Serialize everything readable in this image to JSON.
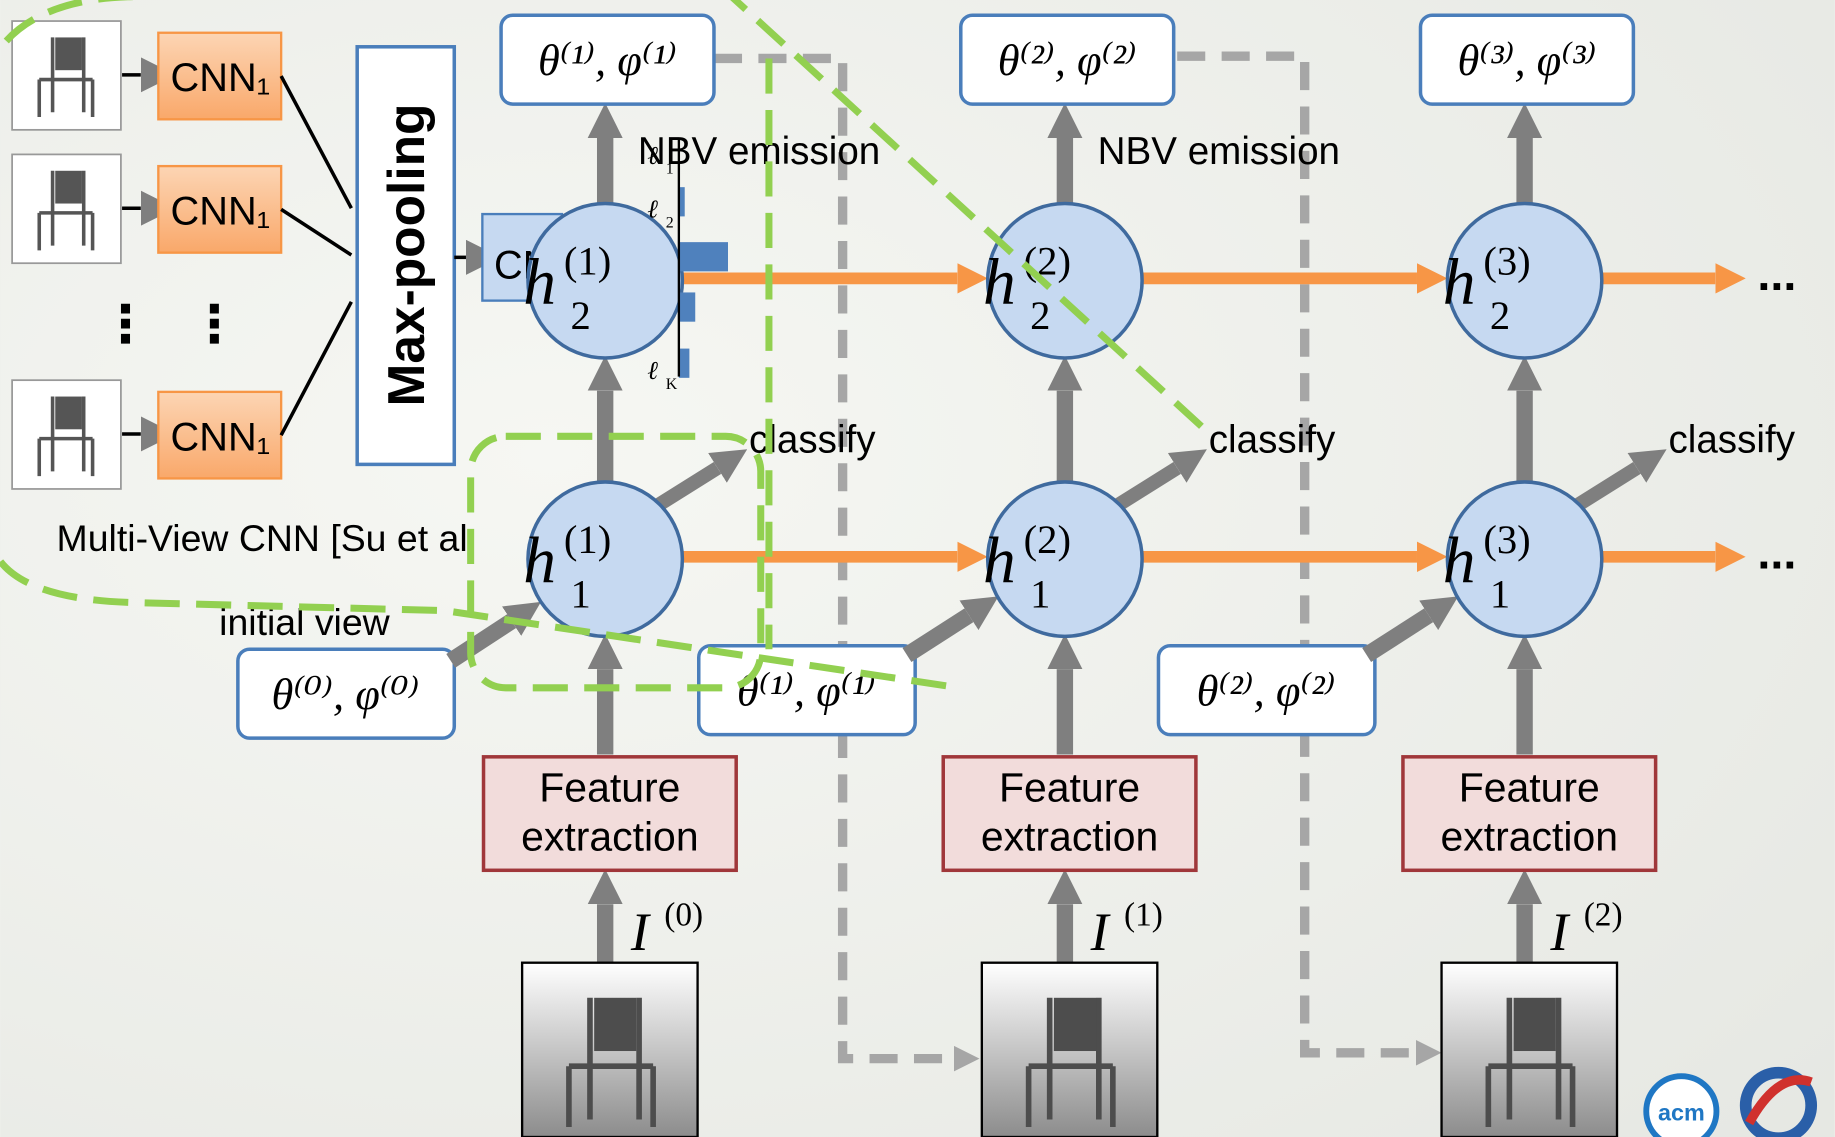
{
  "mvcnn": {
    "cnn_labels": [
      "CNN₁",
      "CNN₁",
      "CNN₁"
    ],
    "dots": [
      "⋮",
      "⋮"
    ],
    "pooling": "Max-pooling",
    "cnn2": "CN",
    "caption": "Multi-View CNN [Su et al"
  },
  "initial_view": "initial view",
  "initial_pose": "θ⁽⁰⁾, φ⁽⁰⁾",
  "histogram_labels": [
    {
      "base": "ℓ",
      "sub": "1"
    },
    {
      "base": "ℓ",
      "sub": "2"
    },
    {
      "base": "ℓ",
      "sub": "K"
    }
  ],
  "steps": [
    {
      "top_pose": "θ⁽¹⁾, φ⁽¹⁾",
      "h2": {
        "base": "h",
        "sup": "(1)",
        "sub": "2"
      },
      "h1": {
        "base": "h",
        "sup": "(1)",
        "sub": "1"
      },
      "nbv": "NBV emission",
      "classify": "classify",
      "feature": [
        "Feature",
        "extraction"
      ],
      "image": {
        "base": "I",
        "sup": "(0)"
      },
      "bottom_pose": "θ⁽¹⁾, φ⁽¹⁾"
    },
    {
      "top_pose": "θ⁽²⁾, φ⁽²⁾",
      "h2": {
        "base": "h",
        "sup": "(2)",
        "sub": "2"
      },
      "h1": {
        "base": "h",
        "sup": "(2)",
        "sub": "1"
      },
      "nbv": "NBV emission",
      "classify": "classify",
      "feature": [
        "Feature",
        "extraction"
      ],
      "image": {
        "base": "I",
        "sup": "(1)"
      },
      "bottom_pose": "θ⁽²⁾, φ⁽²⁾"
    },
    {
      "top_pose": "θ⁽³⁾, φ⁽³⁾",
      "h2": {
        "base": "h",
        "sup": "(3)",
        "sub": "2"
      },
      "h1": {
        "base": "h",
        "sup": "(3)",
        "sub": "1"
      },
      "classify": "classify",
      "feature": [
        "Feature",
        "extraction"
      ],
      "image": {
        "base": "I",
        "sup": "(2)"
      }
    }
  ],
  "ellipsis": [
    "...",
    "..."
  ],
  "logo": "acm"
}
